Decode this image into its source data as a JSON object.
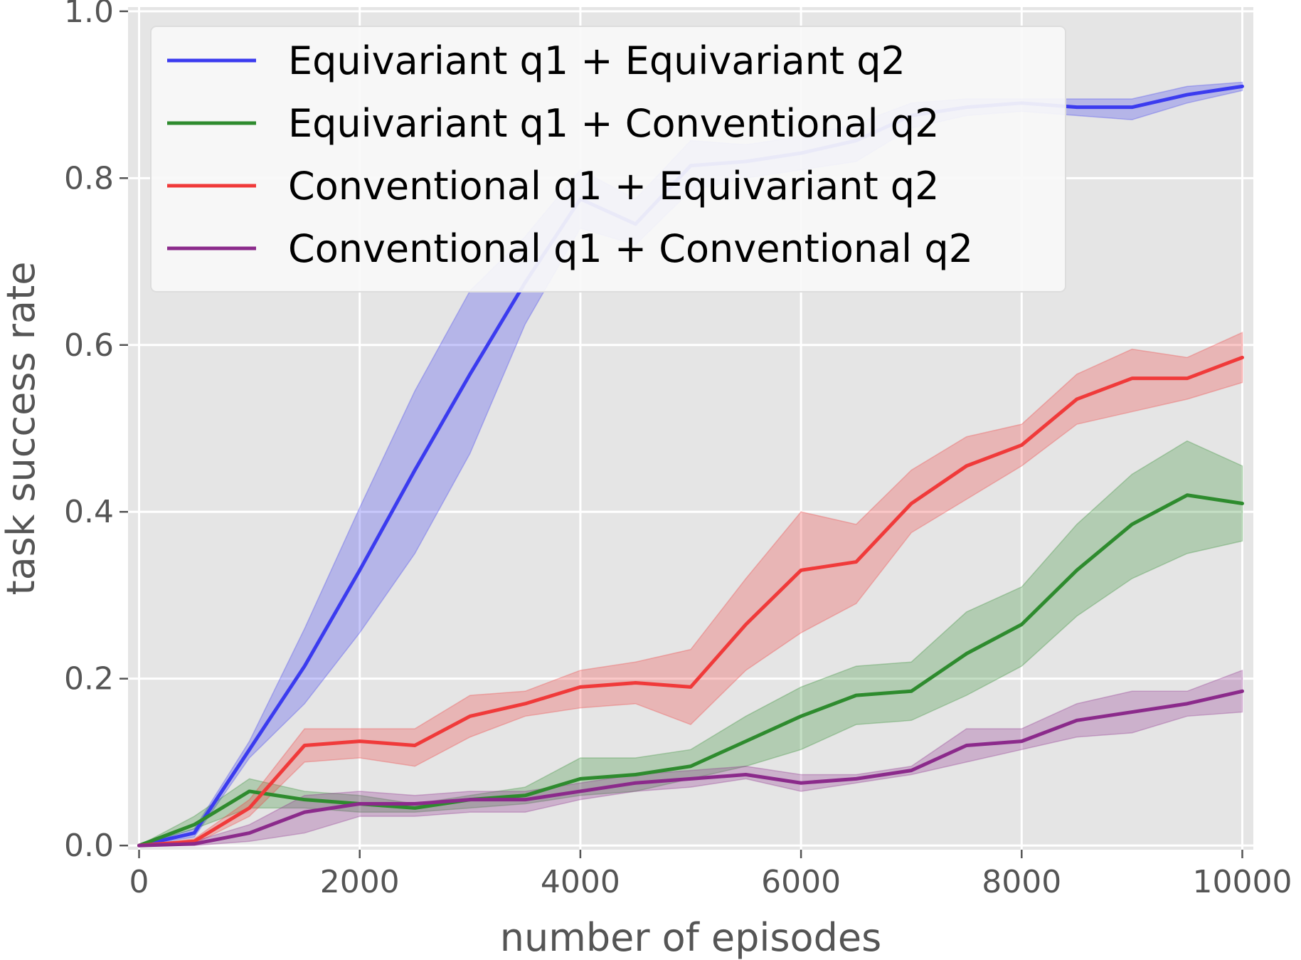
{
  "chart_data": {
    "type": "line",
    "xlabel": "number of episodes",
    "ylabel": "task success rate",
    "xlim": [
      -100,
      10100
    ],
    "ylim": [
      -0.005,
      1.005
    ],
    "xticks": [
      0,
      2000,
      4000,
      6000,
      8000,
      10000
    ],
    "yticks": [
      0.0,
      0.2,
      0.4,
      0.6,
      0.8,
      1.0
    ],
    "xtick_labels": [
      "0",
      "2000",
      "4000",
      "6000",
      "8000",
      "10000"
    ],
    "ytick_labels": [
      "0.0",
      "0.2",
      "0.4",
      "0.6",
      "0.8",
      "1.0"
    ],
    "grid": true,
    "legend_position": "top-left",
    "x": [
      0,
      500,
      1000,
      1500,
      2000,
      2500,
      3000,
      3500,
      4000,
      4500,
      5000,
      5500,
      6000,
      6500,
      7000,
      7500,
      8000,
      8500,
      9000,
      9500,
      10000
    ],
    "series": [
      {
        "name": "Equivariant q1 + Equivariant q2",
        "color": "#3b3bef",
        "values": [
          0.0,
          0.015,
          0.115,
          0.215,
          0.33,
          0.45,
          0.565,
          0.675,
          0.775,
          0.745,
          0.815,
          0.82,
          0.83,
          0.845,
          0.875,
          0.885,
          0.89,
          0.885,
          0.885,
          0.9,
          0.91
        ],
        "lower": [
          0.0,
          0.01,
          0.105,
          0.17,
          0.255,
          0.35,
          0.47,
          0.625,
          0.74,
          0.72,
          0.785,
          0.8,
          0.81,
          0.82,
          0.86,
          0.875,
          0.88,
          0.875,
          0.87,
          0.89,
          0.905
        ],
        "upper": [
          0.0,
          0.02,
          0.125,
          0.26,
          0.405,
          0.545,
          0.665,
          0.73,
          0.81,
          0.775,
          0.845,
          0.84,
          0.85,
          0.865,
          0.89,
          0.895,
          0.895,
          0.895,
          0.895,
          0.91,
          0.915
        ]
      },
      {
        "name": "Equivariant q1 + Conventional q2",
        "color": "#2e8b2e",
        "values": [
          0.0,
          0.025,
          0.065,
          0.055,
          0.05,
          0.045,
          0.055,
          0.06,
          0.08,
          0.085,
          0.095,
          0.125,
          0.155,
          0.18,
          0.185,
          0.23,
          0.265,
          0.33,
          0.385,
          0.42,
          0.41
        ],
        "lower": [
          0.0,
          0.02,
          0.045,
          0.045,
          0.04,
          0.04,
          0.045,
          0.05,
          0.06,
          0.065,
          0.08,
          0.095,
          0.115,
          0.145,
          0.15,
          0.18,
          0.215,
          0.275,
          0.32,
          0.35,
          0.365
        ],
        "upper": [
          0.0,
          0.035,
          0.08,
          0.065,
          0.06,
          0.05,
          0.06,
          0.07,
          0.105,
          0.105,
          0.115,
          0.155,
          0.19,
          0.215,
          0.22,
          0.28,
          0.31,
          0.385,
          0.445,
          0.485,
          0.455
        ]
      },
      {
        "name": "Conventional q1 + Equivariant q2",
        "color": "#f03a3a",
        "values": [
          0.0,
          0.005,
          0.045,
          0.12,
          0.125,
          0.12,
          0.155,
          0.17,
          0.19,
          0.195,
          0.19,
          0.265,
          0.33,
          0.34,
          0.41,
          0.455,
          0.48,
          0.535,
          0.56,
          0.56,
          0.585
        ],
        "lower": [
          0.0,
          0.002,
          0.035,
          0.1,
          0.105,
          0.095,
          0.13,
          0.155,
          0.165,
          0.17,
          0.145,
          0.21,
          0.255,
          0.29,
          0.375,
          0.415,
          0.455,
          0.505,
          0.52,
          0.535,
          0.555
        ],
        "upper": [
          0.0,
          0.008,
          0.055,
          0.14,
          0.14,
          0.14,
          0.18,
          0.185,
          0.21,
          0.22,
          0.235,
          0.32,
          0.4,
          0.385,
          0.45,
          0.49,
          0.505,
          0.565,
          0.595,
          0.585,
          0.615
        ]
      },
      {
        "name": "Conventional q1 + Conventional q2",
        "color": "#8b2a8b",
        "values": [
          0.0,
          0.002,
          0.015,
          0.04,
          0.05,
          0.05,
          0.055,
          0.055,
          0.065,
          0.075,
          0.08,
          0.085,
          0.075,
          0.08,
          0.09,
          0.12,
          0.125,
          0.15,
          0.16,
          0.17,
          0.185
        ],
        "lower": [
          0.0,
          0.0,
          0.005,
          0.015,
          0.035,
          0.035,
          0.04,
          0.04,
          0.055,
          0.065,
          0.07,
          0.08,
          0.065,
          0.075,
          0.085,
          0.1,
          0.115,
          0.13,
          0.135,
          0.155,
          0.16
        ],
        "upper": [
          0.0,
          0.005,
          0.025,
          0.06,
          0.065,
          0.06,
          0.065,
          0.065,
          0.075,
          0.085,
          0.09,
          0.095,
          0.085,
          0.085,
          0.095,
          0.14,
          0.14,
          0.17,
          0.185,
          0.185,
          0.21
        ]
      }
    ]
  }
}
